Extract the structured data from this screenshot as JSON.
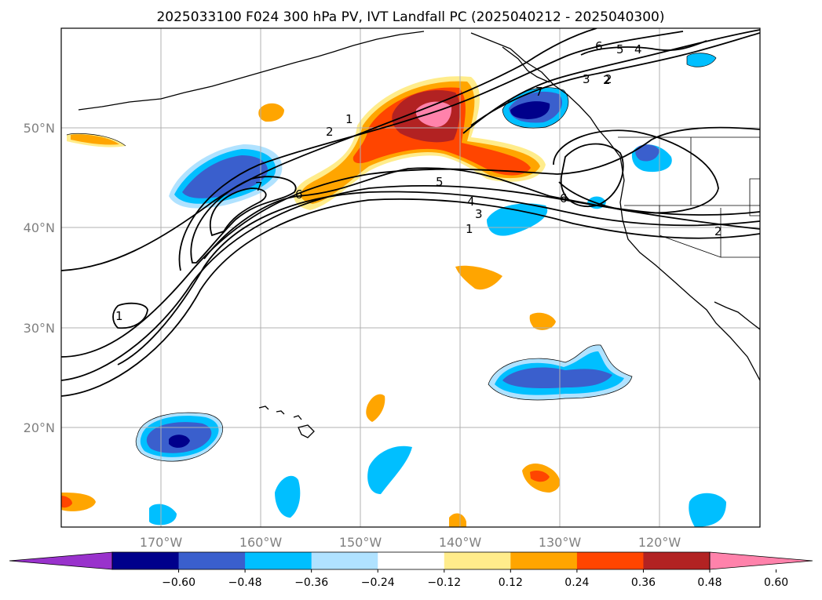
{
  "map": {
    "title": "2025033100 F024 300 hPa PV, IVT Landfall PC (2025040212 - 2025040300)",
    "lon_ticks": [
      "170°W",
      "160°W",
      "150°W",
      "140°W",
      "130°W",
      "120°W"
    ],
    "lat_ticks": [
      "50°N",
      "40°N",
      "30°N",
      "20°N"
    ],
    "extent": {
      "lon": [
        -180,
        -110
      ],
      "lat": [
        10,
        60
      ]
    },
    "gridlines": true,
    "colorbar": {
      "ticks": [
        "−0.60",
        "−0.48",
        "−0.36",
        "−0.24",
        "−0.12",
        "0.12",
        "0.24",
        "0.36",
        "0.48",
        "0.60"
      ],
      "colors": [
        "#9932cc",
        "#00008b",
        "#3a5fcd",
        "#00bfff",
        "#b0e2ff",
        "#ffffff",
        "#ffec8b",
        "#ffa500",
        "#ff4500",
        "#b22222",
        "#ff82ab"
      ],
      "extend": "both"
    },
    "contour_labels": [
      "1",
      "2",
      "1",
      "2",
      "5",
      "4",
      "3",
      "1",
      "6",
      "7",
      "6",
      "5",
      "4",
      "3",
      "2",
      "7",
      "6",
      "2",
      "1",
      "3"
    ]
  }
}
